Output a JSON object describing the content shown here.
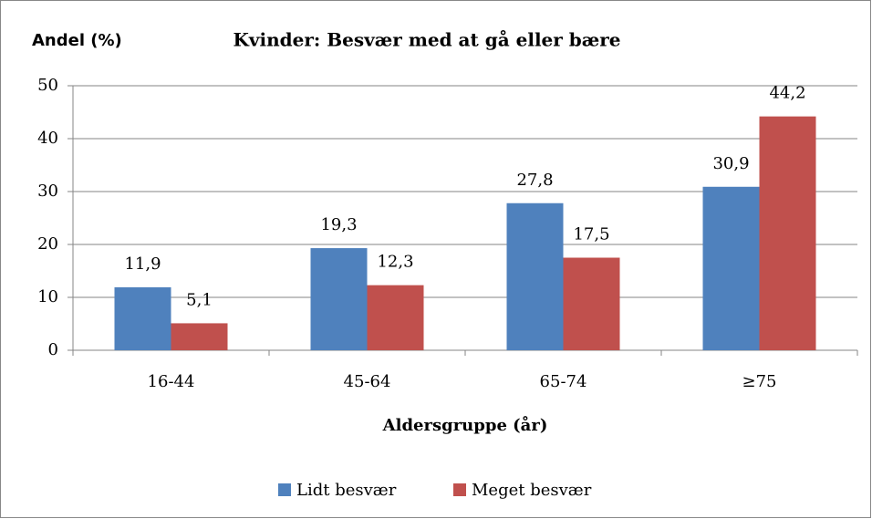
{
  "chart_data": {
    "type": "bar",
    "title": "Kvinder: Besvær med at gå eller bære",
    "y_label": "Andel (%)",
    "x_label": "Aldersgruppe (år)",
    "categories": [
      "16-44",
      "45-64",
      "65-74",
      "≥75"
    ],
    "series": [
      {
        "name": "Lidt besvær",
        "color": "#4f81bd",
        "values": [
          11.9,
          19.3,
          27.8,
          30.9
        ],
        "value_labels": [
          "11,9",
          "19,3",
          "27,8",
          "30,9"
        ]
      },
      {
        "name": "Meget besvær",
        "color": "#c0504d",
        "values": [
          5.1,
          12.3,
          17.5,
          44.2
        ],
        "value_labels": [
          "5,1",
          "12,3",
          "17,5",
          "44,2"
        ]
      }
    ],
    "ylim": [
      0,
      50
    ],
    "yticks": [
      0,
      10,
      20,
      30,
      40,
      50
    ],
    "grid": true,
    "legend": "bottom"
  }
}
